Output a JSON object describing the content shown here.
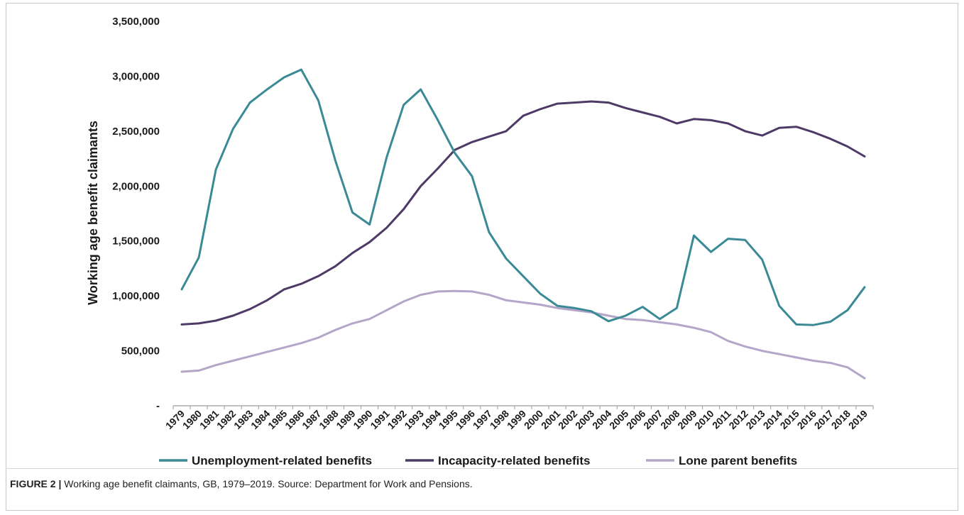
{
  "chart_data": {
    "type": "line",
    "x": [
      "1979",
      "1980",
      "1981",
      "1982",
      "1983",
      "1984",
      "1985",
      "1986",
      "1987",
      "1988",
      "1989",
      "1990",
      "1991",
      "1992",
      "1993",
      "1994",
      "1995",
      "1996",
      "1997",
      "1998",
      "1999",
      "2000",
      "2001",
      "2002",
      "2003",
      "2004",
      "2005",
      "2006",
      "2007",
      "2008",
      "2009",
      "2010",
      "2011",
      "2012",
      "2013",
      "2014",
      "2015",
      "2016",
      "2017",
      "2018",
      "2019"
    ],
    "series": [
      {
        "name": "Unemployment-related benefits",
        "color": "#3a8a96",
        "values": [
          1060000,
          1350000,
          2150000,
          2520000,
          2760000,
          2880000,
          2990000,
          3060000,
          2780000,
          2230000,
          1760000,
          1650000,
          2260000,
          2740000,
          2880000,
          2600000,
          2300000,
          2090000,
          1580000,
          1340000,
          1180000,
          1020000,
          910000,
          890000,
          860000,
          770000,
          820000,
          900000,
          790000,
          890000,
          1550000,
          1400000,
          1520000,
          1510000,
          1330000,
          910000,
          740000,
          735000,
          765000,
          870000,
          1080000
        ]
      },
      {
        "name": "Incapacity-related benefits",
        "color": "#4e3a66",
        "values": [
          740000,
          750000,
          775000,
          820000,
          880000,
          960000,
          1060000,
          1110000,
          1180000,
          1270000,
          1390000,
          1490000,
          1620000,
          1790000,
          2000000,
          2160000,
          2330000,
          2400000,
          2450000,
          2500000,
          2640000,
          2700000,
          2750000,
          2760000,
          2770000,
          2760000,
          2710000,
          2670000,
          2630000,
          2570000,
          2610000,
          2600000,
          2570000,
          2500000,
          2460000,
          2530000,
          2540000,
          2490000,
          2430000,
          2360000,
          2270000
        ]
      },
      {
        "name": "Lone parent benefits",
        "color": "#b4a6c9",
        "values": [
          310000,
          320000,
          370000,
          410000,
          450000,
          490000,
          530000,
          570000,
          620000,
          690000,
          750000,
          790000,
          870000,
          950000,
          1010000,
          1040000,
          1045000,
          1040000,
          1010000,
          960000,
          940000,
          920000,
          890000,
          870000,
          850000,
          820000,
          790000,
          780000,
          760000,
          740000,
          710000,
          670000,
          590000,
          540000,
          500000,
          470000,
          440000,
          410000,
          390000,
          350000,
          250000
        ]
      }
    ],
    "ylabel": "Working age benefit claimants",
    "yticks": [
      "-",
      "500,000",
      "1,000,000",
      "1,500,000",
      "2,000,000",
      "2,500,000",
      "3,000,000",
      "3,500,000"
    ],
    "ylim": [
      0,
      3500000
    ],
    "legend_position": "bottom",
    "grid": false
  },
  "caption": {
    "figure_label": "FIGURE 2 |",
    "text": " Working age benefit claimants, GB, 1979–2019. Source: Department for Work and Pensions."
  }
}
